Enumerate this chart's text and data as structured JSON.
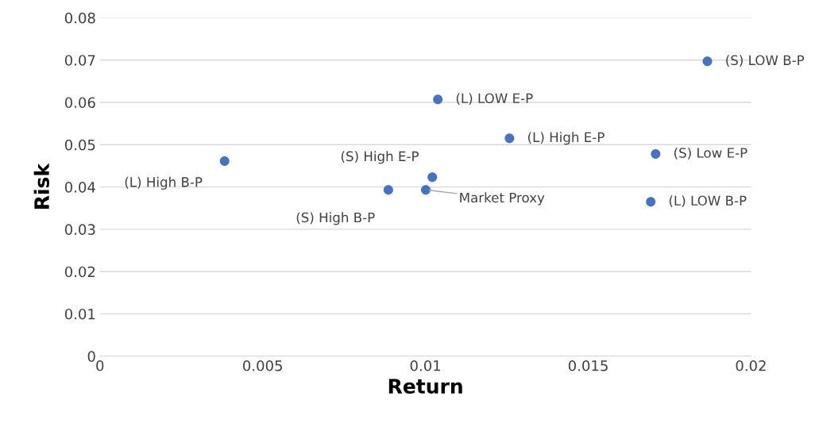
{
  "chart_data": {
    "type": "scatter",
    "xlabel": "Return",
    "ylabel": "Risk",
    "x": [
      0.00383,
      0.00886,
      0.01001,
      0.01021,
      0.01038,
      0.01258,
      0.01866,
      0.01707,
      0.01692
    ],
    "series": [
      {
        "color": "#4472c4",
        "values": [
          0.0461,
          0.0393,
          0.0393,
          0.0423,
          0.0607,
          0.0515,
          0.0697,
          0.0478,
          0.0365
        ]
      }
    ],
    "xlim": [
      0,
      0.02
    ],
    "xticks": [
      0,
      0.005,
      0.01,
      0.015,
      0.02
    ],
    "ylim": [
      0,
      0.08
    ],
    "yticks": [
      0,
      0.01,
      0.02,
      0.03,
      0.04,
      0.05,
      0.06,
      0.07,
      0.08
    ],
    "grid": "y",
    "marker": "circle",
    "annotations": [
      {
        "text": "(L) High B-P",
        "x": 0.00383,
        "y": 0.0461
      },
      {
        "text": "(S) High B-P",
        "x": 0.00886,
        "y": 0.0393
      },
      {
        "text": "Market Proxy",
        "x": 0.01001,
        "y": 0.0393
      },
      {
        "text": "(S) High E-P",
        "x": 0.01021,
        "y": 0.0423
      },
      {
        "text": "(L) LOW E-P",
        "x": 0.01038,
        "y": 0.0607
      },
      {
        "text": "(L) High E-P",
        "x": 0.01258,
        "y": 0.0515
      },
      {
        "text": "(S) LOW B-P",
        "x": 0.01866,
        "y": 0.0697
      },
      {
        "text": "(S) Low E-P",
        "x": 0.01707,
        "y": 0.0478
      },
      {
        "text": "(L) LOW B-P",
        "x": 0.01692,
        "y": 0.0365
      }
    ]
  }
}
